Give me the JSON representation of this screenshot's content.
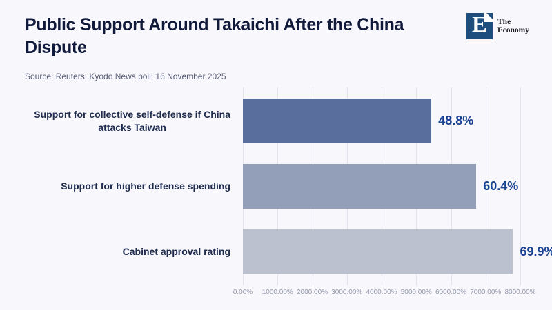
{
  "header": {
    "title": "Public Support Around Takaichi After the China Dispute",
    "source": "Source: Reuters; Kyodo News poll; 16 November 2025",
    "logo": {
      "letter": "E",
      "name_line1": "The",
      "name_line2": "Economy",
      "square_color": "#1d4e7e"
    }
  },
  "chart_data": {
    "type": "bar",
    "orientation": "horizontal",
    "title": "Public Support Around Takaichi After the China Dispute",
    "categories": [
      "Support for collective self-defense if China attacks Taiwan",
      "Support for higher defense spending",
      "Cabinet approval rating"
    ],
    "category_lines": [
      [
        "Support for collective self-defense if China",
        "attacks Taiwan"
      ],
      [
        "Support for higher defense spending"
      ],
      [
        "Cabinet approval rating"
      ]
    ],
    "values": [
      48.8,
      60.4,
      69.9
    ],
    "value_labels": [
      "48.8%",
      "60.4%",
      "69.9%"
    ],
    "bar_colors": [
      "#5a6e9d",
      "#939fb9",
      "#bbc1ce"
    ],
    "x_axis": {
      "min": 0,
      "max": 8000,
      "tick_labels": [
        "0.00%",
        "1000.00%",
        "2000.00%",
        "3000.00%",
        "4000.00%",
        "5000.00%",
        "6000.00%",
        "7000.00%",
        "8000.00%"
      ],
      "values_plotted_times_100": true
    },
    "grid": true,
    "legend": false
  },
  "colors": {
    "background": "#f8f8fc",
    "title_text": "#121a3c",
    "source_text": "#585c76",
    "category_text": "#202c4e",
    "value_text": "#174292",
    "gridline": "#e2e3ec",
    "tick_text": "#9598ae",
    "logo_square": "#1d4e7e"
  }
}
